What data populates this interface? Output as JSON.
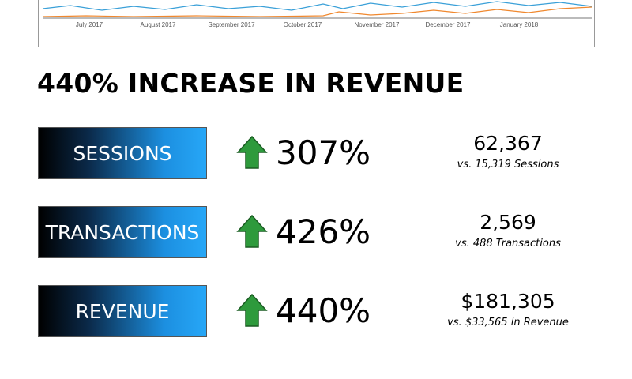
{
  "chart_axis": {
    "labels": [
      "July 2017",
      "August 2017",
      "September 2017",
      "October 2017",
      "November 2017",
      "December 2017",
      "January 2018"
    ]
  },
  "heading": "440% INCREASE IN REVENUE",
  "metrics": [
    {
      "label": "SESSIONS",
      "change": "307%",
      "value": "62,367",
      "comparison": "vs. 15,319 Sessions"
    },
    {
      "label": "TRANSACTIONS",
      "change": "426%",
      "value": "2,569",
      "comparison": "vs. 488 Transactions"
    },
    {
      "label": "REVENUE",
      "change": "440%",
      "value": "$181,305",
      "comparison": "vs. $33,565 in Revenue"
    }
  ]
}
